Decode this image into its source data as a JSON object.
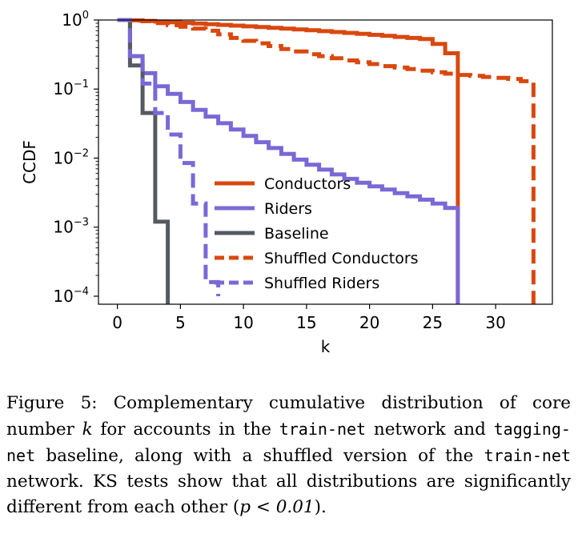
{
  "chart_data": {
    "type": "line",
    "step": true,
    "xlabel": "k",
    "ylabel": "CCDF",
    "xlim": [
      -1.5,
      34.5
    ],
    "ylim": [
      7.65e-05,
      1.0
    ],
    "yscale": "log",
    "xticks": [
      0,
      5,
      10,
      15,
      20,
      25,
      30
    ],
    "xtick_labels": [
      "0",
      "5",
      "10",
      "15",
      "20",
      "25",
      "30"
    ],
    "yticks": [
      1,
      0.1,
      0.01,
      0.001,
      0.0001
    ],
    "ytick_labels": [
      {
        "base": "10",
        "exp": "0"
      },
      {
        "base": "10",
        "exp": "−1"
      },
      {
        "base": "10",
        "exp": "−2"
      },
      {
        "base": "10",
        "exp": "−3"
      },
      {
        "base": "10",
        "exp": "−4"
      }
    ],
    "legend_position": "center",
    "series": [
      {
        "name": "Conductors",
        "color": "#d9480f",
        "dash": "solid",
        "x": [
          0,
          1,
          2,
          3,
          4,
          5,
          6,
          7,
          8,
          9,
          10,
          11,
          12,
          13,
          14,
          15,
          16,
          17,
          18,
          19,
          20,
          21,
          22,
          23,
          24,
          25,
          26,
          27
        ],
        "y": [
          1.0,
          0.99,
          0.97,
          0.95,
          0.93,
          0.91,
          0.89,
          0.87,
          0.85,
          0.83,
          0.81,
          0.79,
          0.77,
          0.75,
          0.73,
          0.71,
          0.69,
          0.67,
          0.65,
          0.63,
          0.61,
          0.59,
          0.57,
          0.55,
          0.53,
          0.45,
          0.33,
          7.65e-05
        ]
      },
      {
        "name": "Riders",
        "color": "#7b68d6",
        "dash": "solid",
        "x": [
          0,
          1,
          2,
          3,
          4,
          5,
          6,
          7,
          8,
          9,
          10,
          11,
          12,
          13,
          14,
          15,
          16,
          17,
          18,
          19,
          20,
          21,
          22,
          23,
          24,
          25,
          26,
          27
        ],
        "y": [
          1.0,
          0.3,
          0.17,
          0.11,
          0.085,
          0.065,
          0.05,
          0.04,
          0.032,
          0.026,
          0.021,
          0.017,
          0.014,
          0.0115,
          0.0095,
          0.008,
          0.0068,
          0.0058,
          0.005,
          0.0044,
          0.0039,
          0.0035,
          0.0031,
          0.0028,
          0.0025,
          0.0022,
          0.0019,
          7.65e-05
        ]
      },
      {
        "name": "Baseline",
        "color": "#555a61",
        "dash": "solid",
        "x": [
          0,
          1,
          2,
          3,
          4
        ],
        "y": [
          1.0,
          0.22,
          0.045,
          0.0012,
          7.65e-05
        ]
      },
      {
        "name": "Shuffled Conductors",
        "color": "#d9480f",
        "dash": "dashed",
        "x": [
          0,
          1,
          2,
          3,
          4,
          5,
          6,
          7,
          8,
          9,
          10,
          11,
          12,
          13,
          14,
          15,
          16,
          17,
          18,
          19,
          20,
          21,
          22,
          23,
          24,
          25,
          26,
          27,
          28,
          29,
          30,
          31,
          32,
          33
        ],
        "y": [
          1.0,
          0.98,
          0.96,
          0.9,
          0.84,
          0.8,
          0.75,
          0.7,
          0.62,
          0.55,
          0.5,
          0.46,
          0.42,
          0.38,
          0.35,
          0.32,
          0.3,
          0.28,
          0.26,
          0.245,
          0.23,
          0.215,
          0.205,
          0.195,
          0.185,
          0.175,
          0.167,
          0.16,
          0.155,
          0.15,
          0.145,
          0.14,
          0.13,
          7.65e-05
        ]
      },
      {
        "name": "Shuffled Riders",
        "color": "#7b68d6",
        "dash": "dashed",
        "x": [
          0,
          1,
          2,
          3,
          4,
          5,
          6,
          7,
          8
        ],
        "y": [
          1.0,
          0.3,
          0.12,
          0.045,
          0.022,
          0.0085,
          0.0022,
          0.00016,
          0.0001
        ]
      }
    ]
  },
  "caption": {
    "label": "Figure 5: Complementary cumulative distribution of core number",
    "var_k": "k",
    "part2": "for accounts in the",
    "code1": "train-net",
    "part3": "network and",
    "code2": "tagging-net",
    "part4": "baseline, along with a shuffled version of the",
    "code3": "train-net",
    "part5": "network. KS tests show that all distributions are significantly different from each other (",
    "math_p": "p < 0.01",
    "part6": ")."
  }
}
